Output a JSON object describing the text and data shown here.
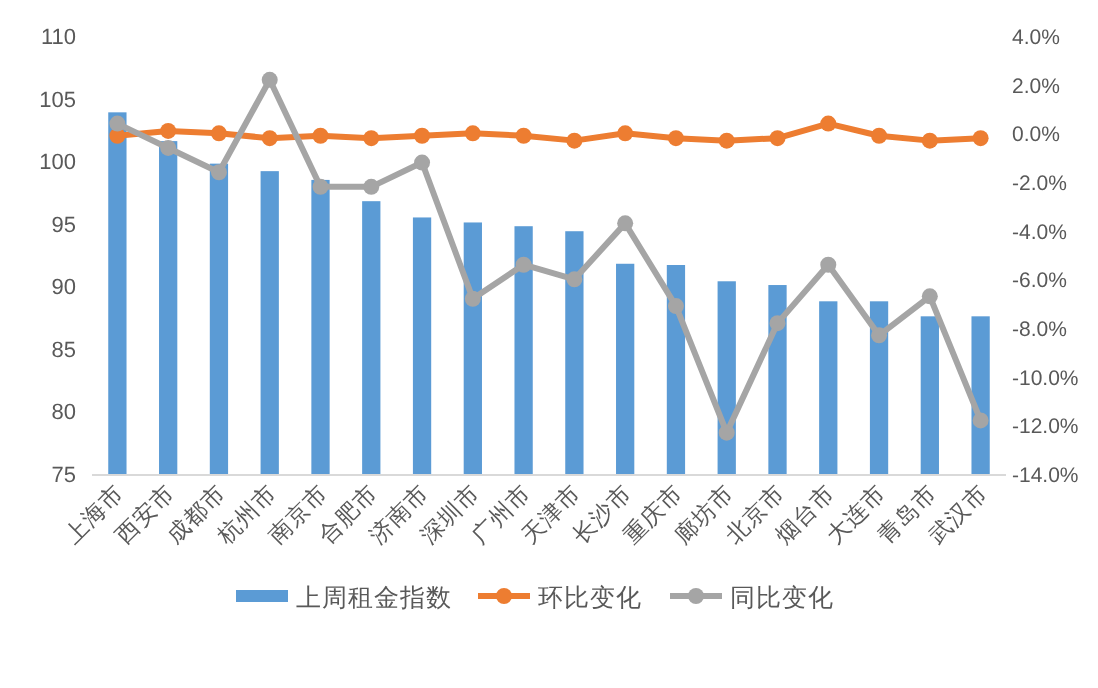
{
  "chart_data": {
    "type": "bar",
    "categories": [
      "上海市",
      "西安市",
      "成都市",
      "杭州市",
      "南京市",
      "合肥市",
      "济南市",
      "深圳市",
      "广州市",
      "天津市",
      "长沙市",
      "重庆市",
      "廊坊市",
      "北京市",
      "烟台市",
      "大连市",
      "青岛市",
      "武汉市"
    ],
    "series": [
      {
        "name": "上周租金指数",
        "color": "#5b9bd5",
        "values": [
          103.9,
          101.6,
          99.8,
          99.2,
          98.5,
          96.8,
          95.5,
          95.1,
          94.8,
          94.4,
          91.8,
          91.7,
          90.4,
          90.1,
          88.8,
          88.8,
          87.6,
          87.6
        ]
      },
      {
        "name": "环比变化",
        "type": "line",
        "axis": "y2",
        "marker": "circle",
        "color": "#ed7d31",
        "values": [
          -0.1,
          0.1,
          0.0,
          -0.2,
          -0.1,
          -0.2,
          -0.1,
          0.0,
          -0.1,
          -0.3,
          0.0,
          -0.2,
          -0.3,
          -0.2,
          0.4,
          -0.1,
          -0.3,
          -0.2
        ]
      },
      {
        "name": "同比变化",
        "type": "line",
        "axis": "y2",
        "marker": "circle",
        "color": "#a5a5a5",
        "values": [
          0.4,
          -0.6,
          -1.6,
          2.2,
          -2.2,
          -2.2,
          -1.2,
          -6.8,
          -5.4,
          -6.0,
          -3.7,
          -7.1,
          -12.3,
          -7.8,
          -5.4,
          -8.3,
          -6.7,
          -11.8
        ]
      }
    ],
    "ylim": [
      75,
      110
    ],
    "yticks": [
      75,
      80,
      85,
      90,
      95,
      100,
      105,
      110
    ],
    "y2lim": [
      -14,
      4
    ],
    "y2ticks": [
      {
        "value": -14,
        "label": "-14.0%"
      },
      {
        "value": -12,
        "label": "-12.0%"
      },
      {
        "value": -10,
        "label": "-10.0%"
      },
      {
        "value": -8,
        "label": "-8.0%"
      },
      {
        "value": -6,
        "label": "-6.0%"
      },
      {
        "value": -4,
        "label": "-4.0%"
      },
      {
        "value": -2,
        "label": "-2.0%"
      },
      {
        "value": 0,
        "label": "0.0%"
      },
      {
        "value": 2,
        "label": "2.0%"
      },
      {
        "value": 4,
        "label": "4.0%"
      }
    ],
    "legend": "bottom"
  }
}
